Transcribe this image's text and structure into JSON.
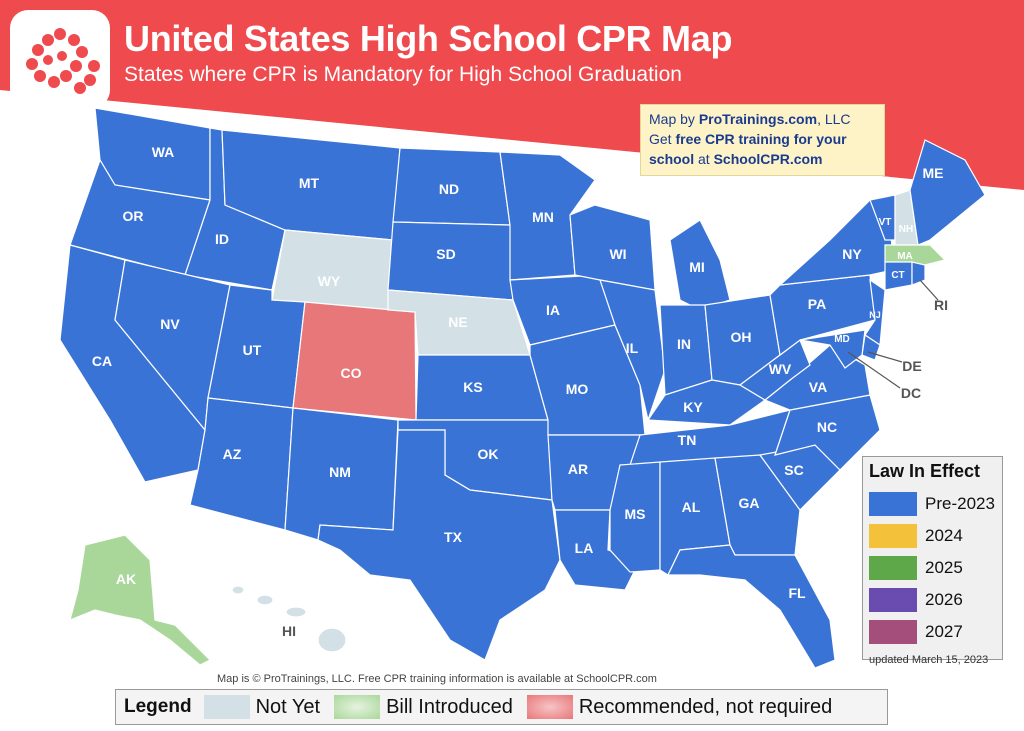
{
  "header": {
    "title": "United States High School CPR Map",
    "subtitle": "States where CPR is Mandatory for High School Graduation"
  },
  "credit": {
    "line1_prefix": "Map by ",
    "line1_brand": "ProTrainings.com",
    "line1_suffix": ", LLC",
    "line2_prefix": "Get ",
    "line2_bold": "free CPR training for your",
    "line3_bold": "school",
    "line3_mid": " at ",
    "line3_link": "SchoolCPR.com"
  },
  "colors": {
    "banner": "#ef4a4d",
    "pre2023": "#3a73d6",
    "y2024": "#f3c13a",
    "y2025": "#5ea84a",
    "y2026": "#6a4cb0",
    "y2027": "#a44e7c",
    "not_yet": "#d3e1e6",
    "bill_introduced": "#a9d79a",
    "recommended": "#e8777a"
  },
  "law_legend": {
    "title": "Law In Effect",
    "items": [
      {
        "label": "Pre-2023",
        "color": "#3a73d6"
      },
      {
        "label": "2024",
        "color": "#f3c13a"
      },
      {
        "label": "2025",
        "color": "#5ea84a"
      },
      {
        "label": "2026",
        "color": "#6a4cb0"
      },
      {
        "label": "2027",
        "color": "#a44e7c"
      }
    ]
  },
  "updated": "updated March 15, 2023",
  "copyright": "Map is © ProTrainings, LLC. Free CPR training information is available at SchoolCPR.com",
  "legend": {
    "title": "Legend",
    "not_yet": "Not Yet",
    "bill_introduced": "Bill Introduced",
    "recommended": "Recommended, not required"
  },
  "states": {
    "WA": "WA",
    "OR": "OR",
    "CA": "CA",
    "ID": "ID",
    "NV": "NV",
    "MT": "MT",
    "WY": "WY",
    "UT": "UT",
    "AZ": "AZ",
    "CO": "CO",
    "NM": "NM",
    "ND": "ND",
    "SD": "SD",
    "NE": "NE",
    "KS": "KS",
    "OK": "OK",
    "TX": "TX",
    "MN": "MN",
    "IA": "IA",
    "MO": "MO",
    "AR": "AR",
    "LA": "LA",
    "WI": "WI",
    "IL": "IL",
    "MI": "MI",
    "IN": "IN",
    "OH": "OH",
    "KY": "KY",
    "TN": "TN",
    "MS": "MS",
    "AL": "AL",
    "GA": "GA",
    "FL": "FL",
    "SC": "SC",
    "NC": "NC",
    "VA": "VA",
    "WV": "WV",
    "PA": "PA",
    "NY": "NY",
    "VT": "VT",
    "NH": "NH",
    "ME": "ME",
    "MA": "MA",
    "CT": "CT",
    "RI": "RI",
    "NJ": "NJ",
    "DE": "DE",
    "MD": "MD",
    "DC": "DC",
    "AK": "AK",
    "HI": "HI"
  },
  "state_status": {
    "WY": "not_yet",
    "NE": "not_yet",
    "NH": "not_yet",
    "HI": "not_yet",
    "MA": "bill_introduced",
    "AK": "bill_introduced",
    "CO": "recommended"
  }
}
